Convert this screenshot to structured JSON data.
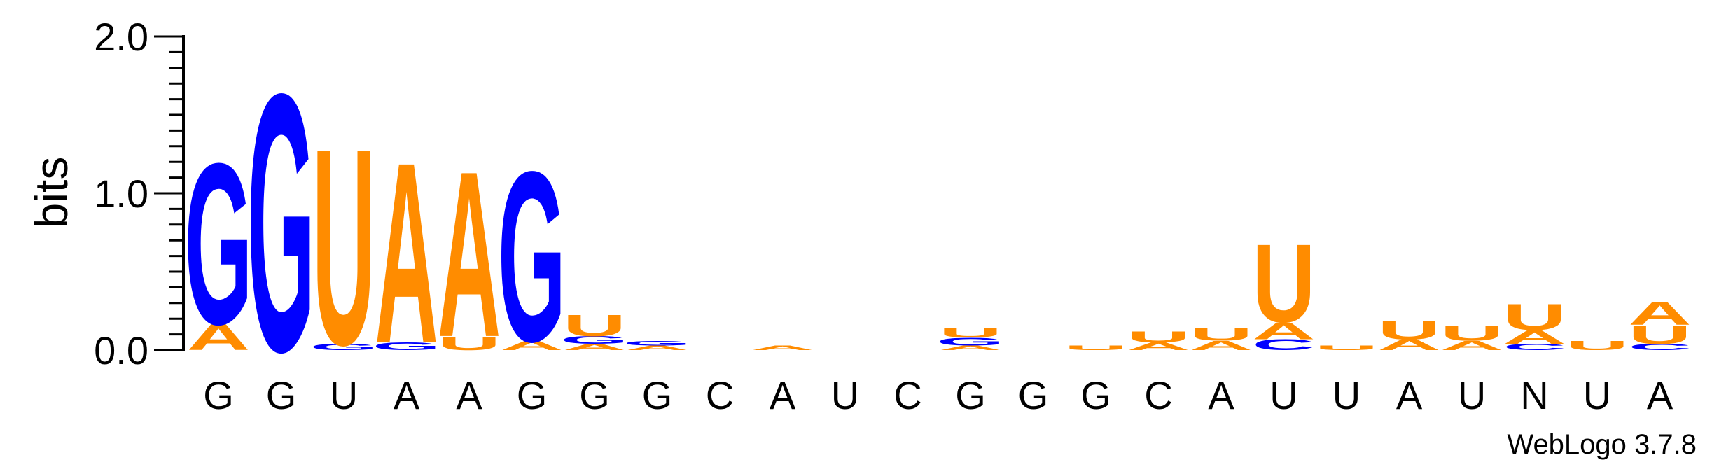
{
  "chart_data": {
    "type": "sequence-logo",
    "ylabel": "bits",
    "ylim": [
      0,
      2
    ],
    "yticks": [
      "0.0",
      "1.0",
      "2.0"
    ],
    "colors": {
      "A": "#FF8C00",
      "U": "#FF8C00",
      "G": "#0000FF",
      "C": "#0000FF"
    },
    "credit": "WebLogo 3.7.8",
    "positions": [
      {
        "label": "G",
        "stack": [
          [
            "A",
            0.17
          ],
          [
            "G",
            1.05
          ]
        ]
      },
      {
        "label": "G",
        "stack": [
          [
            "G",
            1.68
          ]
        ]
      },
      {
        "label": "U",
        "stack": [
          [
            "G",
            0.04
          ],
          [
            "U",
            1.28
          ]
        ]
      },
      {
        "label": "A",
        "stack": [
          [
            "G",
            0.05
          ],
          [
            "A",
            1.18
          ]
        ]
      },
      {
        "label": "A",
        "stack": [
          [
            "U",
            0.09
          ],
          [
            "A",
            1.08
          ]
        ]
      },
      {
        "label": "G",
        "stack": [
          [
            "A",
            0.06
          ],
          [
            "G",
            1.11
          ]
        ]
      },
      {
        "label": "G",
        "stack": [
          [
            "A",
            0.04
          ],
          [
            "G",
            0.05
          ],
          [
            "U",
            0.14
          ]
        ]
      },
      {
        "label": "G",
        "stack": [
          [
            "A",
            0.03
          ],
          [
            "G",
            0.03
          ]
        ]
      },
      {
        "label": "C",
        "stack": []
      },
      {
        "label": "A",
        "stack": [
          [
            "A",
            0.03
          ]
        ]
      },
      {
        "label": "U",
        "stack": []
      },
      {
        "label": "C",
        "stack": []
      },
      {
        "label": "G",
        "stack": [
          [
            "A",
            0.03
          ],
          [
            "G",
            0.05
          ],
          [
            "U",
            0.06
          ]
        ]
      },
      {
        "label": "G",
        "stack": []
      },
      {
        "label": "G",
        "stack": [
          [
            "U",
            0.03
          ]
        ]
      },
      {
        "label": "C",
        "stack": [
          [
            "A",
            0.05
          ],
          [
            "U",
            0.07
          ]
        ]
      },
      {
        "label": "A",
        "stack": [
          [
            "A",
            0.06
          ],
          [
            "U",
            0.08
          ]
        ]
      },
      {
        "label": "U",
        "stack": [
          [
            "C",
            0.07
          ],
          [
            "A",
            0.11
          ],
          [
            "U",
            0.51
          ]
        ]
      },
      {
        "label": "U",
        "stack": [
          [
            "U",
            0.03
          ]
        ]
      },
      {
        "label": "A",
        "stack": [
          [
            "A",
            0.07
          ],
          [
            "U",
            0.12
          ]
        ]
      },
      {
        "label": "U",
        "stack": [
          [
            "A",
            0.06
          ],
          [
            "U",
            0.1
          ]
        ]
      },
      {
        "label": "N",
        "stack": [
          [
            "C",
            0.04
          ],
          [
            "A",
            0.09
          ],
          [
            "U",
            0.17
          ]
        ]
      },
      {
        "label": "U",
        "stack": [
          [
            "U",
            0.06
          ]
        ]
      },
      {
        "label": "A",
        "stack": [
          [
            "C",
            0.04
          ],
          [
            "U",
            0.12
          ],
          [
            "A",
            0.15
          ]
        ]
      }
    ]
  }
}
